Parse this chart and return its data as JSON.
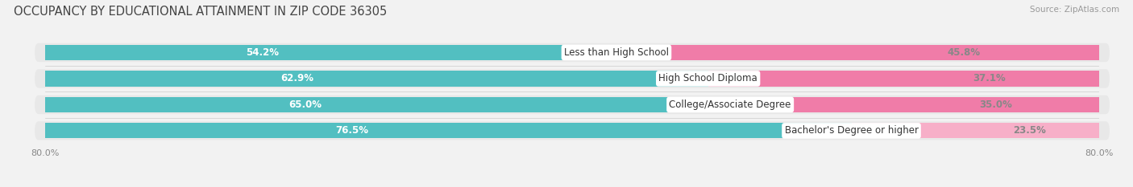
{
  "title": "OCCUPANCY BY EDUCATIONAL ATTAINMENT IN ZIP CODE 36305",
  "source": "Source: ZipAtlas.com",
  "categories": [
    "Less than High School",
    "High School Diploma",
    "College/Associate Degree",
    "Bachelor's Degree or higher"
  ],
  "owner_pct": [
    54.2,
    62.9,
    65.0,
    76.5
  ],
  "renter_pct": [
    45.8,
    37.1,
    35.0,
    23.5
  ],
  "owner_color": "#52bfc1",
  "renter_color": "#f07ca8",
  "renter_color_light": "#f7afc8",
  "bar_bg_color": "#e8e8e8",
  "x_left_label": "80.0%",
  "x_right_label": "80.0%",
  "title_fontsize": 10.5,
  "source_fontsize": 7.5,
  "bar_label_fontsize": 8.5,
  "category_fontsize": 8.5,
  "legend_fontsize": 8.5,
  "axis_label_fontsize": 8,
  "background_color": "#f2f2f2",
  "bar_height": 0.72,
  "xlim": 100.0
}
